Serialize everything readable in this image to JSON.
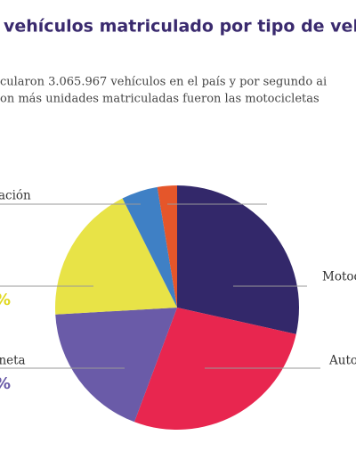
{
  "chart_data": {
    "type": "pie",
    "title": "vehículos matriculado por tipo de vel",
    "subtitle": [
      "cularon 3.065.967 vehículos en el país y por segundo ai",
      "on más unidades matriculadas fueron las motocicletas"
    ],
    "categories": [
      "Motoc",
      "Auto",
      "ioneta",
      null,
      "ación",
      null
    ],
    "values": [
      28.5,
      27.2,
      18.4,
      18.5,
      4.8,
      2.6
    ],
    "colors": [
      "#33286a",
      "#e8264f",
      "#6a5ba8",
      "#e8e347",
      "#3f80c5",
      "#e5562a"
    ],
    "annotations": [
      {
        "text": "%",
        "color": "#e0d820"
      },
      {
        "text": "%",
        "color": "#6a5ba8"
      }
    ]
  }
}
